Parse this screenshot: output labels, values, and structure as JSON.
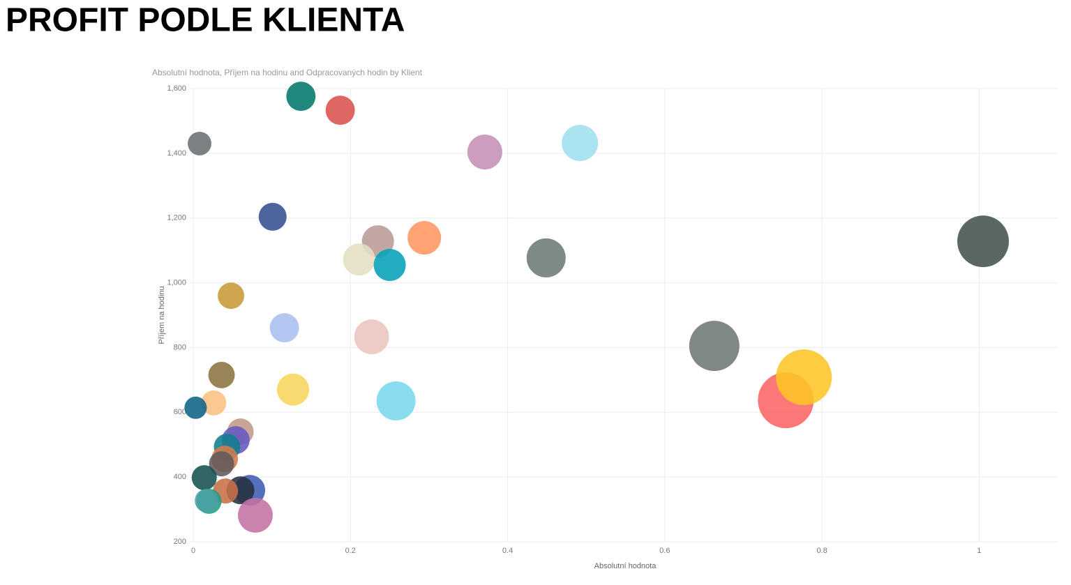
{
  "header": {
    "title": "PROFIT PODLE KLIENTA"
  },
  "chart_data": {
    "type": "bubble",
    "title": "Absolutní hodnota, Příjem na hodinu and Odpracovaných hodin by Klient",
    "x_label": "Absolutní hodnota",
    "y_label": "Příjem na hodinu",
    "xlim": [
      0,
      1.1
    ],
    "xticks": [
      0,
      0.2,
      0.4,
      0.6,
      0.8,
      1
    ],
    "ylim": [
      200,
      1600
    ],
    "yticks": [
      200,
      400,
      600,
      800,
      {
        "value": 1000,
        "label": "1,000"
      },
      {
        "value": 1200,
        "label": "1,200"
      },
      {
        "value": 1400,
        "label": "1,400"
      },
      {
        "value": 1600,
        "label": "1,600"
      }
    ],
    "grid": true,
    "x": [
      0.137,
      0.187,
      0.008,
      0.371,
      0.492,
      0.101,
      0.235,
      0.294,
      0.211,
      0.25,
      0.449,
      1.005,
      0.048,
      0.116,
      0.227,
      0.663,
      0.036,
      0.127,
      0.754,
      0.777,
      0.258,
      0.026,
      0.003,
      0.06,
      0.054,
      0.043,
      0.04,
      0.036,
      0.072,
      0.06,
      0.041,
      0.014,
      0.02,
      0.017,
      0.079
    ],
    "values": [
      1576,
      1533,
      1430,
      1404,
      1432,
      1204,
      1128,
      1139,
      1072,
      1055,
      1077,
      1128,
      960,
      861,
      833,
      805,
      715,
      670,
      637,
      708,
      635,
      629,
      614,
      540,
      514,
      493,
      456,
      441,
      359,
      359,
      357,
      398,
      325,
      327,
      282
    ],
    "sizes": [
      110,
      110,
      72,
      156,
      169,
      100,
      132,
      144,
      132,
      132,
      196,
      342,
      90,
      110,
      156,
      324,
      90,
      132,
      400,
      400,
      196,
      81,
      64,
      90,
      100,
      90,
      90,
      81,
      121,
      100,
      81,
      81,
      81,
      72,
      156
    ],
    "colors": [
      "#01786b",
      "#d9524f",
      "#6c7073",
      "#c58fb5",
      "#9fe0ee",
      "#34508e",
      "#b79b94",
      "#fd9661",
      "#e3dfc2",
      "#05a0b7",
      "#6c7a74",
      "#44524f",
      "#c79a38",
      "#a9bff0",
      "#eac5bf",
      "#6d7872",
      "#8b7341",
      "#f7d55a",
      "#fc6464",
      "#fdc527",
      "#79d8ec",
      "#fcc083",
      "#0e6386",
      "#c2988a",
      "#6559c1",
      "#11808d",
      "#d57a4b",
      "#615a5b",
      "#3d5cb4",
      "#26303f",
      "#c86f48",
      "#16514f",
      "#1f9d86",
      "#4aa1a3",
      "#c272a0"
    ]
  }
}
